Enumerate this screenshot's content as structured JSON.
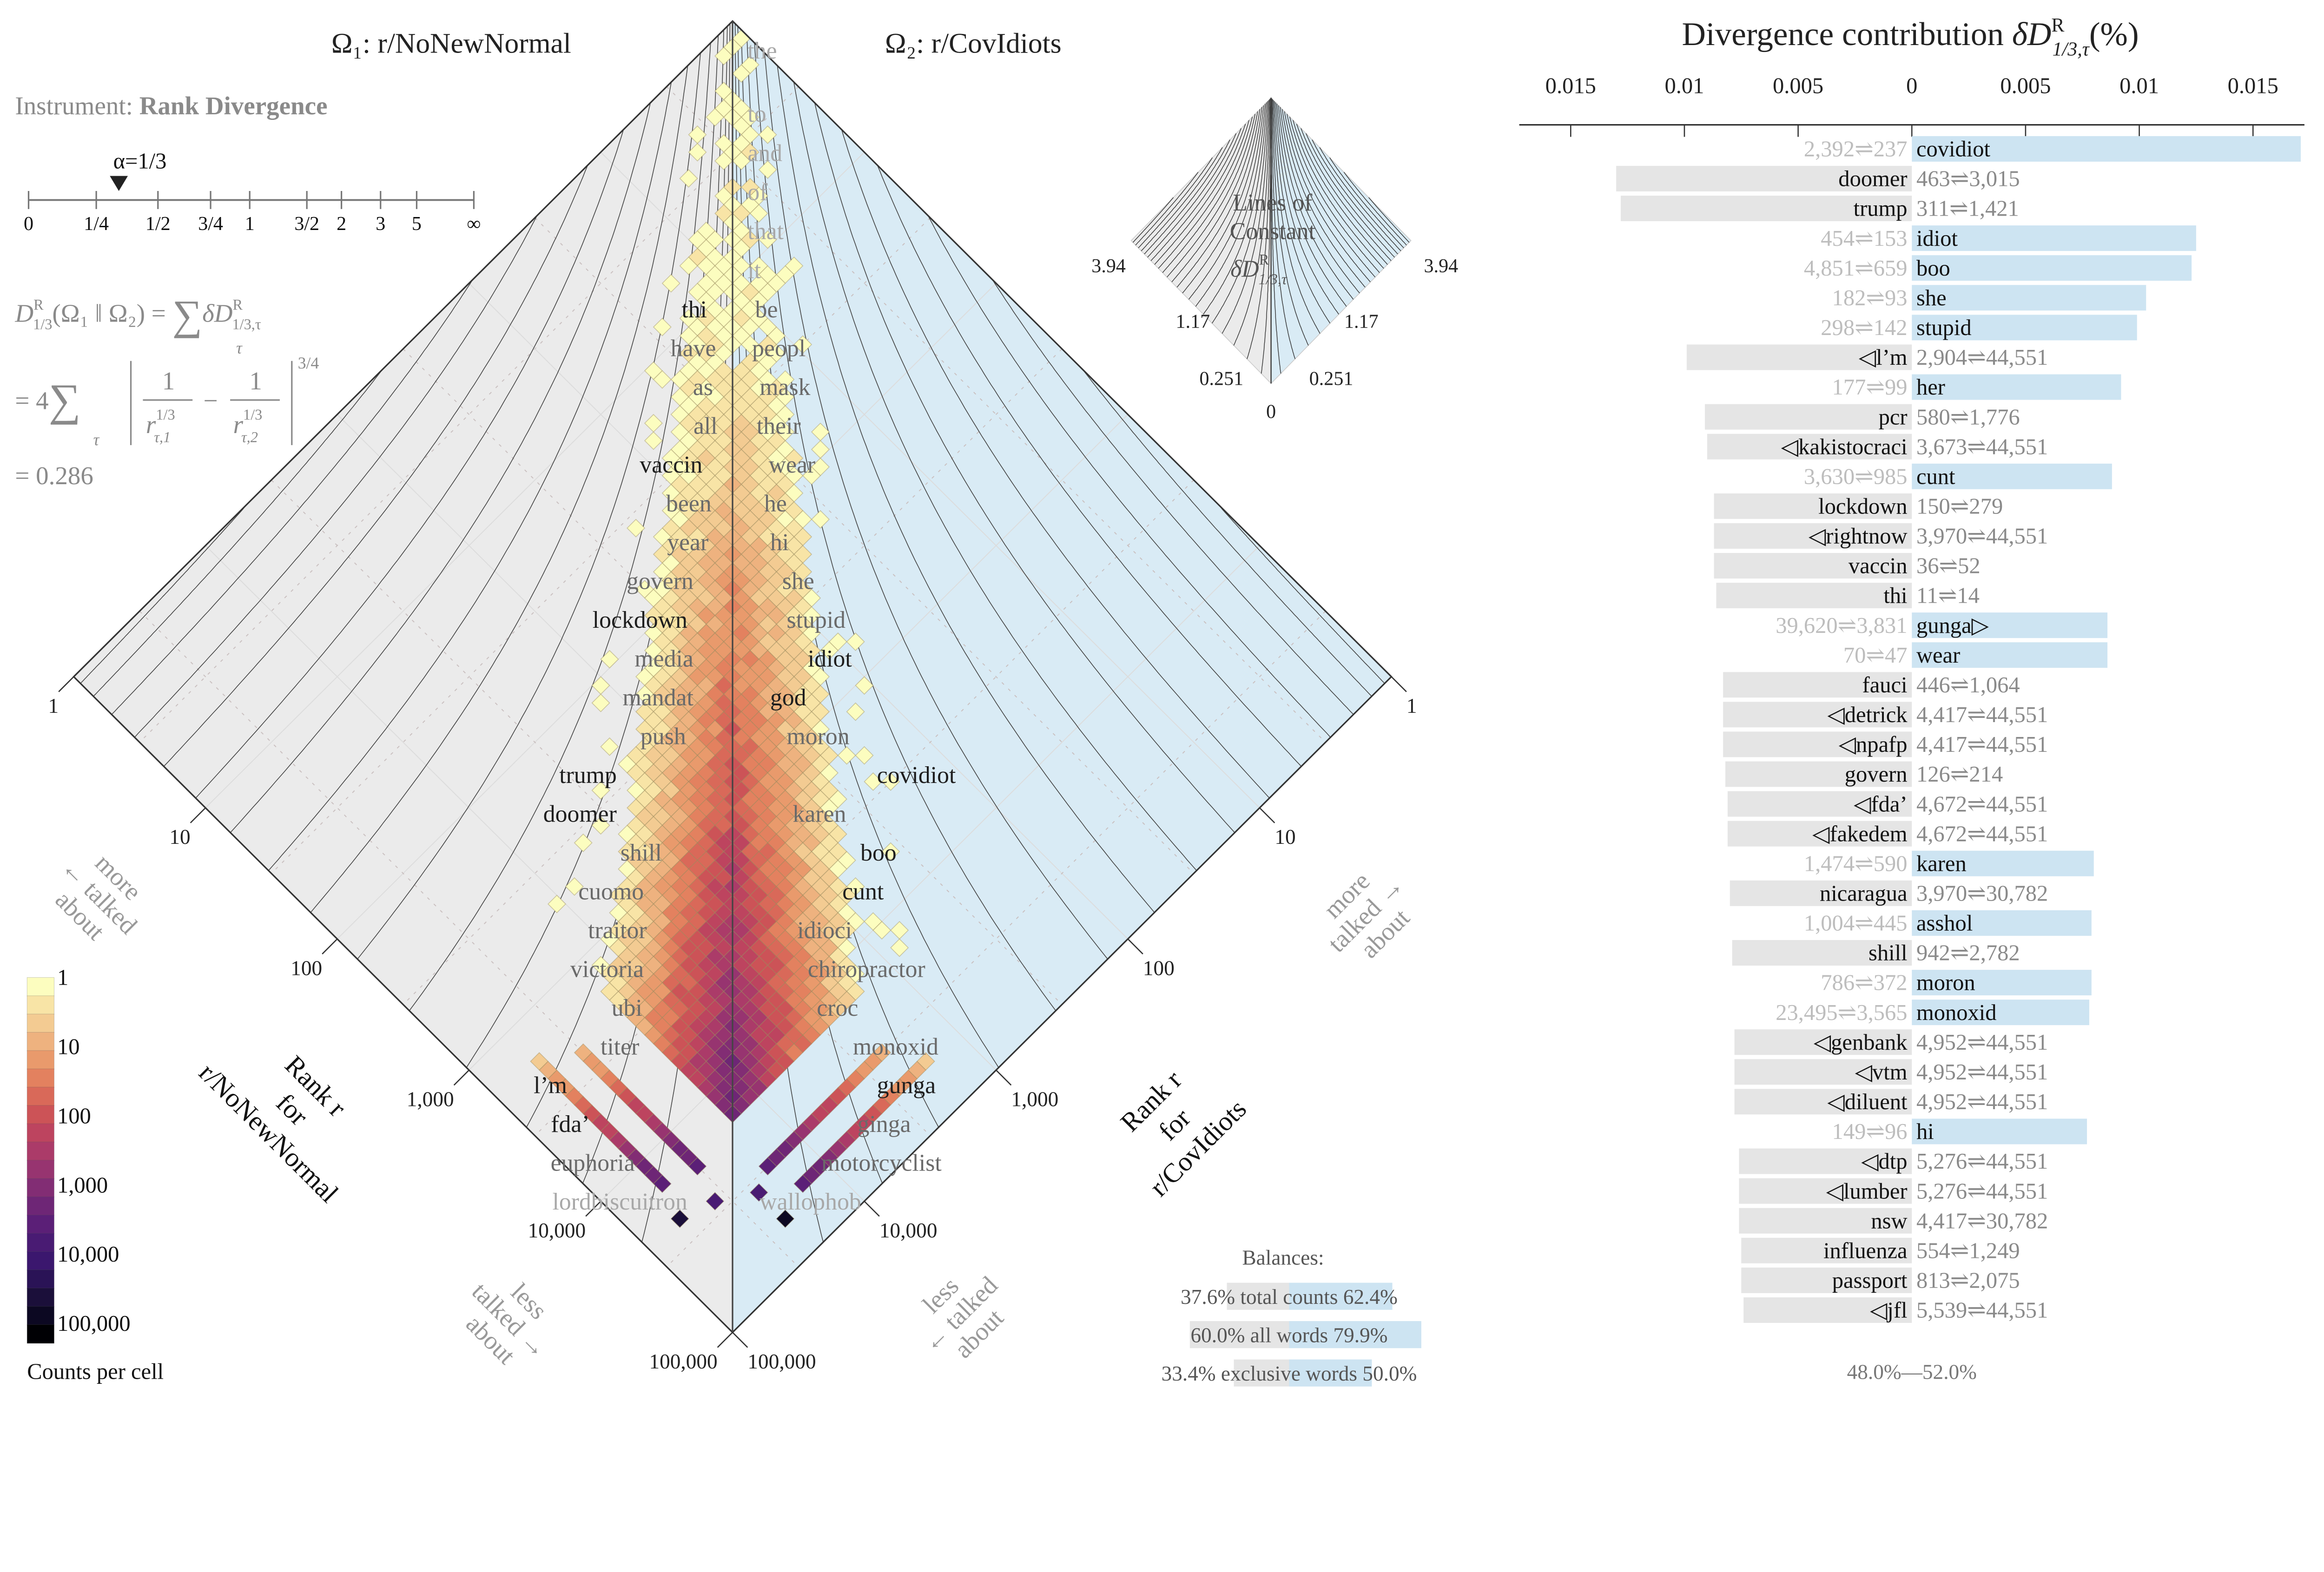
{
  "header": {
    "system1": "Ω₁: r/NoNewNormal",
    "system2": "Ω₂: r/CovIdiots",
    "instrument_label": "Instrument: ",
    "instrument_name": "Rank Divergence"
  },
  "alpha": {
    "label": "α=1/3",
    "value": 0.3333,
    "ticks": [
      "0",
      "1/4",
      "1/2",
      "3/4",
      "1",
      "3/2",
      "2",
      "3",
      "5",
      "∞"
    ]
  },
  "formula": {
    "l1_D": "D",
    "l1_sup": "R",
    "l1_sub": "1/3",
    "l1_args": "(Ω₁ ‖ Ω₂) = ",
    "sum": "∑",
    "sum_index": "τ",
    "l1_dD": "δD",
    "l1_dsup": "R",
    "l1_dsub": "1/3,τ",
    "l2_prefix": "= 4",
    "one": "1",
    "r": "r",
    "r_sup": "1/3",
    "r_sub1": "τ,1",
    "r_sub2": "τ,2",
    "minus": "−",
    "exponent": "3/4",
    "l3": "= 0.286"
  },
  "colorbar": {
    "title": "Counts per cell",
    "labels": [
      "1",
      "10",
      "100",
      "1,000",
      "10,000",
      "100,000"
    ],
    "colors": [
      "#fcfdbf",
      "#f8e4a6",
      "#f3cb92",
      "#eeb27f",
      "#e99a6c",
      "#e3815f",
      "#d96959",
      "#cc5357",
      "#bd445f",
      "#ab3b69",
      "#973470",
      "#822d74",
      "#6e2676",
      "#5b1f77",
      "#491b73",
      "#3b176e",
      "#2a1356",
      "#1b0f3a",
      "#0c0822",
      "#000004"
    ]
  },
  "inset": {
    "line1": "Lines of",
    "line2": "Constant",
    "symbol": "δD",
    "sup": "R",
    "sub": "1/3,τ",
    "ticks_left": [
      "3.94",
      "1.17",
      "0.251"
    ],
    "ticks_right": [
      "3.94",
      "1.17",
      "0.251"
    ],
    "tick_bottom": "0"
  },
  "balances": {
    "title": "Balances:",
    "rows": [
      {
        "left": "37.6%",
        "label": "total counts",
        "right": "62.4%",
        "left_value": 37.6,
        "right_value": 62.4
      },
      {
        "left": "60.0%",
        "label": "all words",
        "right": "79.9%",
        "left_value": 60.0,
        "right_value": 79.9
      },
      {
        "left": "33.4%",
        "label": "exclusive words",
        "right": "50.0%",
        "left_value": 33.4,
        "right_value": 50.0
      }
    ]
  },
  "colors": {
    "system1_bg": "#ebebeb",
    "system2_bg": "#d9ebf5",
    "bar_left": "#e5e5e5",
    "bar_right": "#cde4f2"
  },
  "chart_data": [
    {
      "type": "heatmap",
      "subtype": "rank-rank allotaxonograph",
      "x_axis_label": [
        "Rank r",
        "for",
        "r/NoNewNormal"
      ],
      "y_axis_label": [
        "Rank r",
        "for",
        "r/CovIdiots"
      ],
      "scale": "log",
      "rank_range": [
        1,
        100000
      ],
      "tick_labels_left": [
        "1",
        "10",
        "100",
        "1,000",
        "10,000",
        "100,000"
      ],
      "tick_labels_right": [
        "1",
        "10",
        "100",
        "1,000",
        "10,000",
        "100,000"
      ],
      "annotations": {
        "more_left": [
          "more",
          "← talked",
          "about"
        ],
        "less_left": [
          "less",
          "talked →",
          "about"
        ],
        "more_right": [
          "more",
          "talked →",
          "about"
        ],
        "less_right": [
          "less",
          "← talked",
          "about"
        ]
      },
      "words_system1": [
        "thi",
        "have",
        "as",
        "all",
        "vaccin",
        "been",
        "year",
        "govern",
        "lockdown",
        "media",
        "mandat",
        "push",
        "trump",
        "doomer",
        "shill",
        "cuomo",
        "traitor",
        "victoria",
        "ubi",
        "titer",
        "l’m",
        "fda’",
        "euphoria",
        "lordbiscuitron"
      ],
      "words_system2": [
        "the",
        "to",
        "and",
        "of",
        "that",
        "it",
        "be",
        "peopl",
        "mask",
        "their",
        "wear",
        "he",
        "hi",
        "she",
        "stupid",
        "idiot",
        "god",
        "moron",
        "covidiot",
        "karen",
        "boo",
        "cunt",
        "idioci",
        "chiropractor",
        "croc",
        "monoxid",
        "gunga",
        "ginga",
        "motorcyclist",
        "wallophob"
      ],
      "grid": true
    },
    {
      "type": "bar",
      "orientation": "horizontal-diverging",
      "title": "Divergence contribution",
      "title_symbol": "δD",
      "title_sup": "R",
      "title_sub": "1/3,τ",
      "title_unit": "(%)",
      "xlim": [
        -0.0175,
        0.0175
      ],
      "tick_labels": [
        "0.015",
        "0.01",
        "0.005",
        "0",
        "0.005",
        "0.01",
        "0.015"
      ],
      "footer": "48.0%—52.0%",
      "rows": [
        {
          "word": "covidiot",
          "ranks": "2,392⇌237",
          "side": "right",
          "value": 0.0171
        },
        {
          "word": "doomer",
          "ranks": "463⇌3,015",
          "side": "left",
          "value": 0.013
        },
        {
          "word": "trump",
          "ranks": "311⇌1,421",
          "side": "left",
          "value": 0.0128
        },
        {
          "word": "idiot",
          "ranks": "454⇌153",
          "side": "right",
          "value": 0.0125
        },
        {
          "word": "boo",
          "ranks": "4,851⇌659",
          "side": "right",
          "value": 0.0123
        },
        {
          "word": "she",
          "ranks": "182⇌93",
          "side": "right",
          "value": 0.0103
        },
        {
          "word": "stupid",
          "ranks": "298⇌142",
          "side": "right",
          "value": 0.0099
        },
        {
          "word": "◁l’m",
          "ranks": "2,904⇌44,551",
          "side": "left",
          "value": 0.0099
        },
        {
          "word": "her",
          "ranks": "177⇌99",
          "side": "right",
          "value": 0.0092
        },
        {
          "word": "pcr",
          "ranks": "580⇌1,776",
          "side": "left",
          "value": 0.0091
        },
        {
          "word": "◁kakistocraci",
          "ranks": "3,673⇌44,551",
          "side": "left",
          "value": 0.009
        },
        {
          "word": "cunt",
          "ranks": "3,630⇌985",
          "side": "right",
          "value": 0.0088
        },
        {
          "word": "lockdown",
          "ranks": "150⇌279",
          "side": "left",
          "value": 0.0087
        },
        {
          "word": "◁rightnow",
          "ranks": "3,970⇌44,551",
          "side": "left",
          "value": 0.0087
        },
        {
          "word": "vaccin",
          "ranks": "36⇌52",
          "side": "left",
          "value": 0.0087
        },
        {
          "word": "thi",
          "ranks": "11⇌14",
          "side": "left",
          "value": 0.0086
        },
        {
          "word": "gunga▷",
          "ranks": "39,620⇌3,831",
          "side": "right",
          "value": 0.0086
        },
        {
          "word": "wear",
          "ranks": "70⇌47",
          "side": "right",
          "value": 0.0086
        },
        {
          "word": "fauci",
          "ranks": "446⇌1,064",
          "side": "left",
          "value": 0.0083
        },
        {
          "word": "◁detrick",
          "ranks": "4,417⇌44,551",
          "side": "left",
          "value": 0.0083
        },
        {
          "word": "◁npafp",
          "ranks": "4,417⇌44,551",
          "side": "left",
          "value": 0.0083
        },
        {
          "word": "govern",
          "ranks": "126⇌214",
          "side": "left",
          "value": 0.0082
        },
        {
          "word": "◁fda’",
          "ranks": "4,672⇌44,551",
          "side": "left",
          "value": 0.0081
        },
        {
          "word": "◁fakedem",
          "ranks": "4,672⇌44,551",
          "side": "left",
          "value": 0.0081
        },
        {
          "word": "karen",
          "ranks": "1,474⇌590",
          "side": "right",
          "value": 0.008
        },
        {
          "word": "nicaragua",
          "ranks": "3,970⇌30,782",
          "side": "left",
          "value": 0.008
        },
        {
          "word": "asshol",
          "ranks": "1,004⇌445",
          "side": "right",
          "value": 0.0079
        },
        {
          "word": "shill",
          "ranks": "942⇌2,782",
          "side": "left",
          "value": 0.0079
        },
        {
          "word": "moron",
          "ranks": "786⇌372",
          "side": "right",
          "value": 0.0079
        },
        {
          "word": "monoxid",
          "ranks": "23,495⇌3,565",
          "side": "right",
          "value": 0.0078
        },
        {
          "word": "◁genbank",
          "ranks": "4,952⇌44,551",
          "side": "left",
          "value": 0.0078
        },
        {
          "word": "◁vtm",
          "ranks": "4,952⇌44,551",
          "side": "left",
          "value": 0.0078
        },
        {
          "word": "◁diluent",
          "ranks": "4,952⇌44,551",
          "side": "left",
          "value": 0.0078
        },
        {
          "word": "hi",
          "ranks": "149⇌96",
          "side": "right",
          "value": 0.0077
        },
        {
          "word": "◁dtp",
          "ranks": "5,276⇌44,551",
          "side": "left",
          "value": 0.0076
        },
        {
          "word": "◁lumber",
          "ranks": "5,276⇌44,551",
          "side": "left",
          "value": 0.0076
        },
        {
          "word": "nsw",
          "ranks": "4,417⇌30,782",
          "side": "left",
          "value": 0.0076
        },
        {
          "word": "influenza",
          "ranks": "554⇌1,249",
          "side": "left",
          "value": 0.0075
        },
        {
          "word": "passport",
          "ranks": "813⇌2,075",
          "side": "left",
          "value": 0.0075
        },
        {
          "word": "◁jfl",
          "ranks": "5,539⇌44,551",
          "side": "left",
          "value": 0.0074
        }
      ]
    }
  ]
}
